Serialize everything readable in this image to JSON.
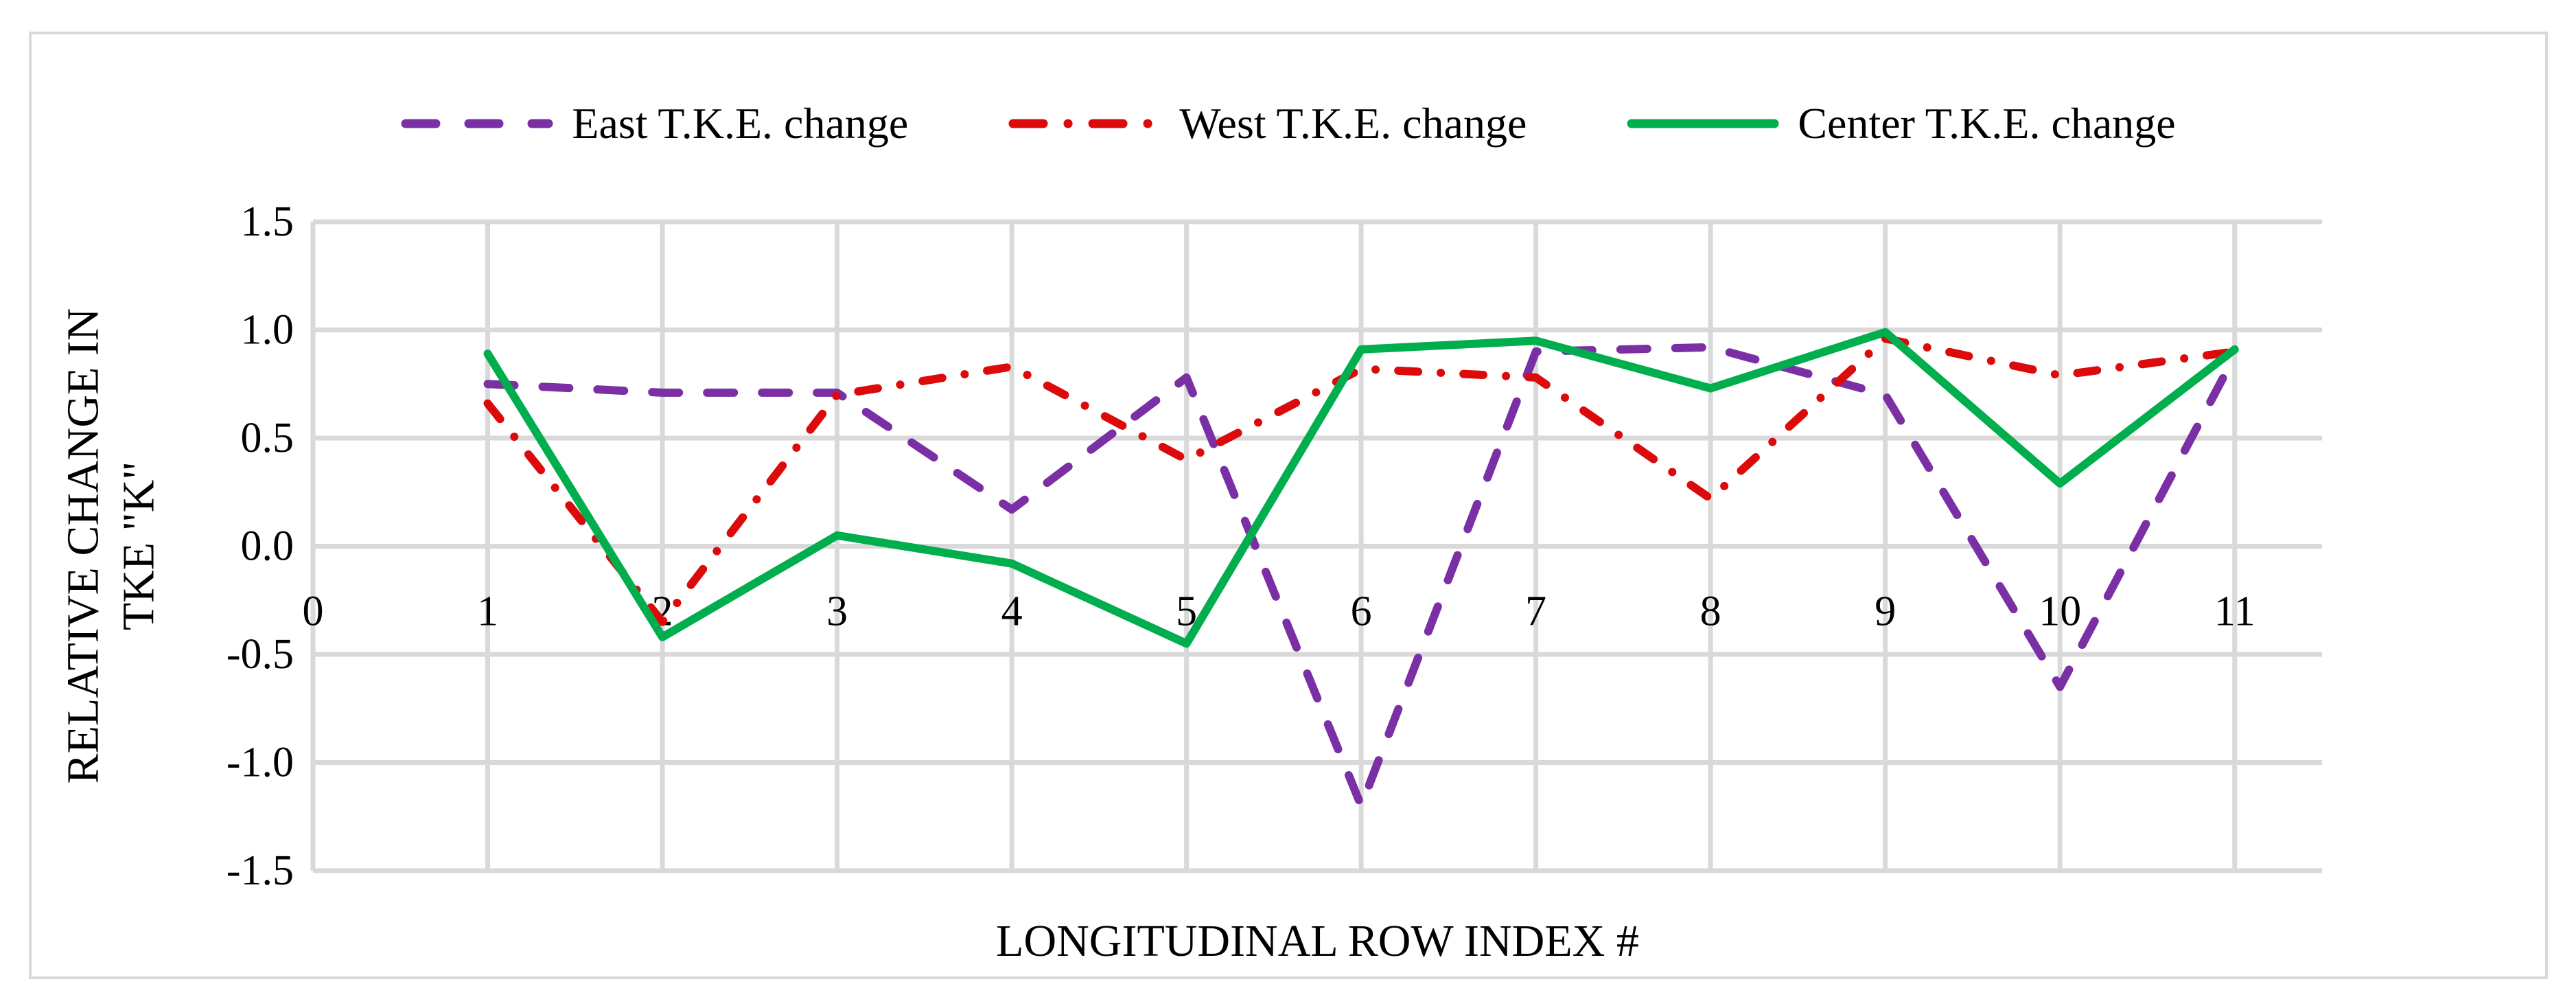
{
  "chart_data": {
    "type": "line",
    "x": [
      1,
      2,
      3,
      4,
      5,
      6,
      7,
      8,
      9,
      10,
      11
    ],
    "series": [
      {
        "name": "East T.K.E. change",
        "color": "#7B2FA5",
        "line_style": "dashed",
        "values": [
          0.75,
          0.71,
          0.71,
          0.17,
          0.78,
          -1.2,
          0.9,
          0.92,
          0.7,
          -0.65,
          0.88
        ]
      },
      {
        "name": "West T.K.E. change",
        "color": "#DC0A0A",
        "line_style": "dash-dot",
        "values": [
          0.66,
          -0.35,
          0.7,
          0.83,
          0.4,
          0.82,
          0.78,
          0.22,
          0.96,
          0.79,
          0.9
        ]
      },
      {
        "name": "Center T.K.E. change",
        "color": "#00AE4E",
        "line_style": "solid",
        "values": [
          0.89,
          -0.42,
          0.05,
          -0.08,
          -0.45,
          0.91,
          0.95,
          0.73,
          0.99,
          0.29,
          0.91
        ]
      }
    ],
    "xlabel": "LONGITUDINAL ROW INDEX #",
    "ylabel_lines": [
      "RELATIVE CHANGE IN",
      "TKE \"K\""
    ],
    "xlim": [
      0,
      11.5
    ],
    "ylim": [
      -1.5,
      1.5
    ],
    "x_tick_labels": [
      "0",
      "1",
      "2",
      "3",
      "4",
      "5",
      "6",
      "7",
      "8",
      "9",
      "10",
      "11"
    ],
    "x_tick_values": [
      0,
      1,
      2,
      3,
      4,
      5,
      6,
      7,
      8,
      9,
      10,
      11
    ],
    "y_tick_labels": [
      "1.5",
      "1.0",
      "0.5",
      "0.0",
      "-0.5",
      "-1.0",
      "-1.5"
    ],
    "y_tick_values": [
      1.5,
      1.0,
      0.5,
      0.0,
      -0.5,
      -1.0,
      -1.5
    ],
    "grid": true,
    "gridline_color": "#D9D9D9",
    "legend_position": "top"
  }
}
